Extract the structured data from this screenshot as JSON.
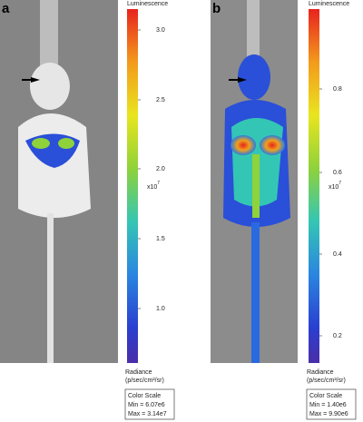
{
  "panels": [
    {
      "label": "a",
      "colorbar": {
        "title": "Luminescence",
        "ticks": [
          "3.0",
          "2.5",
          "2.0",
          "1.5",
          "1.0"
        ],
        "multiplier": "x10",
        "exponent": "7",
        "unit_title": "Radiance",
        "unit": "(p/sec/cm²/sr)",
        "box_title": "Color Scale",
        "min": "Min = 6.07e6",
        "max": "Max = 3.14e7"
      }
    },
    {
      "label": "b",
      "colorbar": {
        "title": "Luminescence",
        "ticks": [
          "0.8",
          "0.6",
          "0.4",
          "0.2"
        ],
        "multiplier": "x10",
        "exponent": "7",
        "unit_title": "Radiance",
        "unit": "(p/sec/cm²/sr)",
        "box_title": "Color Scale",
        "min": "Min = 1.40e6",
        "max": "Max = 9.90e6"
      }
    }
  ]
}
